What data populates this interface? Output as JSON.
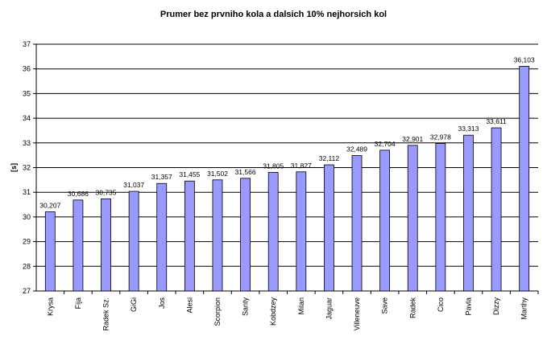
{
  "chart_data": {
    "type": "bar",
    "title": "Prumer bez prvniho kola a dalsich 10% nejhorsich kol",
    "xlabel": "",
    "ylabel": "[s]",
    "ylim": [
      27,
      37
    ],
    "yticks": [
      27,
      28,
      29,
      30,
      31,
      32,
      33,
      34,
      35,
      36,
      37
    ],
    "grid": true,
    "legend": "none",
    "bar_color": "#9999ff",
    "categories": [
      "Krysa",
      "Fija",
      "Radek Sz.",
      "GiGi",
      "Jos",
      "Alesi",
      "Scorpion",
      "Santy",
      "Kobdzey",
      "Milan",
      "Jaguar",
      "Villeneuve",
      "Save",
      "Radek",
      "Cico",
      "Pavla",
      "Dizzy",
      "Marthy"
    ],
    "values": [
      30.207,
      30.686,
      30.735,
      31.037,
      31.357,
      31.455,
      31.502,
      31.566,
      31.805,
      31.827,
      32.112,
      32.489,
      32.704,
      32.901,
      32.978,
      33.313,
      33.611,
      36.103
    ],
    "data_labels": [
      "30,207",
      "30,686",
      "30,735",
      "31,037",
      "31,357",
      "31,455",
      "31,502",
      "31,566",
      "31,805",
      "31,827",
      "32,112",
      "32,489",
      "32,704",
      "32,901",
      "32,978",
      "33,313",
      "33,611",
      "36,103"
    ]
  }
}
